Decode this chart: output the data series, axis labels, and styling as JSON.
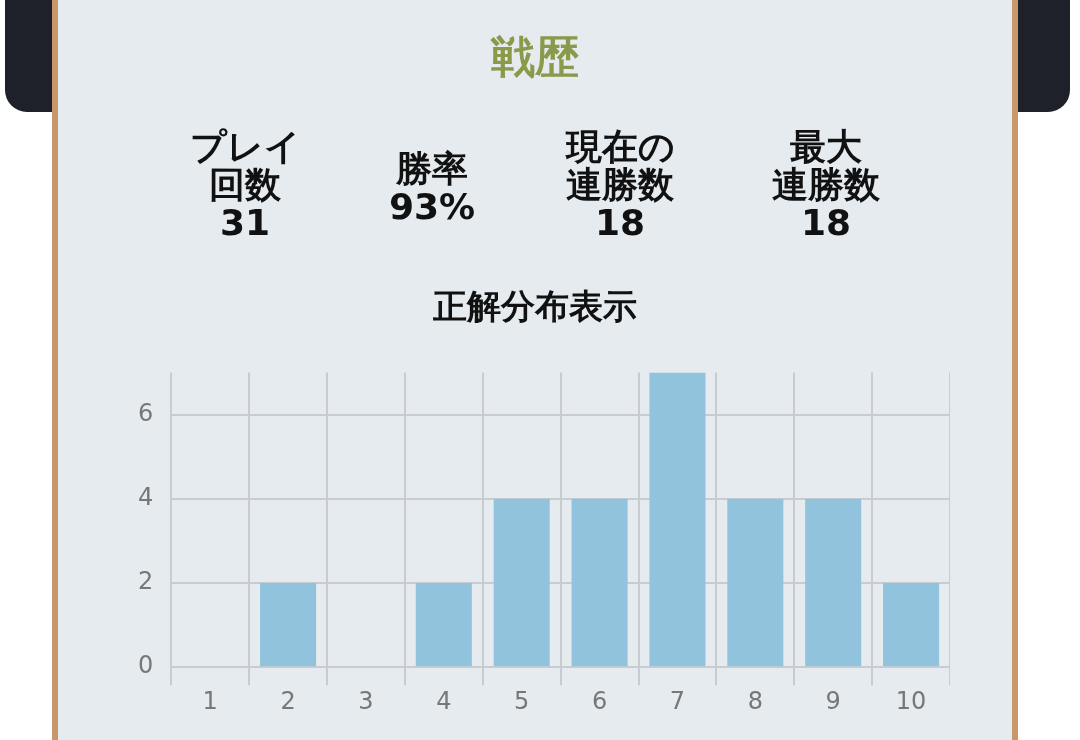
{
  "chart_data": {
    "type": "bar",
    "title": "戦歴",
    "subtitle": "正解分布表示",
    "annotations": [
      "プレイ",
      "回数",
      "31",
      "勝率",
      "93%",
      "現在の",
      "連勝数",
      "18",
      "最大",
      "連勝数",
      "18"
    ],
    "categories": [
      "1",
      "2",
      "3",
      "4",
      "5",
      "6",
      "7",
      "8",
      "9",
      "10"
    ],
    "values": [
      0,
      2,
      0,
      2,
      4,
      4,
      7,
      4,
      4,
      2
    ],
    "color": "#92c3dc",
    "ylim": [
      0,
      7
    ],
    "yticks": [
      0,
      2,
      4,
      6
    ],
    "grid": true
  }
}
